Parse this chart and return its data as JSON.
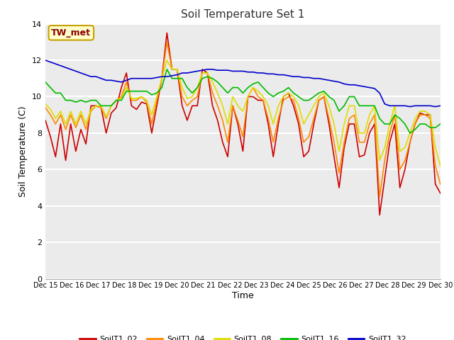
{
  "title": "Soil Temperature Set 1",
  "xlabel": "Time",
  "ylabel": "Soil Temperature (C)",
  "ylim": [
    0,
    14
  ],
  "yticks": [
    0,
    2,
    4,
    6,
    8,
    10,
    12,
    14
  ],
  "fig_bg": "#ffffff",
  "plot_bg": "#ebebeb",
  "grid_color": "#ffffff",
  "annotation_label": "TW_met",
  "annotation_color": "#8b0000",
  "annotation_bg": "#ffffcc",
  "annotation_border": "#c8a000",
  "series_colors": {
    "SoilT1_02": "#cc0000",
    "SoilT1_04": "#ff8800",
    "SoilT1_08": "#dddd00",
    "SoilT1_16": "#00bb00",
    "SoilT1_32": "#0000cc"
  },
  "xtick_labels": [
    "Dec 15",
    "Dec 16",
    "Dec 17",
    "Dec 18",
    "Dec 19",
    "Dec 20",
    "Dec 21",
    "Dec 22",
    "Dec 23",
    "Dec 24",
    "Dec 25",
    "Dec 26",
    "Dec 27",
    "Dec 28",
    "Dec 29",
    "Dec 30"
  ],
  "SoilT1_02": [
    8.7,
    7.8,
    6.7,
    8.5,
    6.5,
    8.5,
    7.0,
    8.2,
    7.4,
    9.5,
    9.5,
    9.4,
    8.0,
    9.1,
    9.4,
    10.5,
    11.3,
    9.5,
    9.3,
    9.7,
    9.6,
    8.0,
    9.5,
    11.0,
    13.5,
    11.5,
    11.5,
    9.5,
    8.7,
    9.5,
    9.5,
    11.5,
    11.3,
    9.5,
    8.7,
    7.5,
    6.7,
    9.5,
    8.5,
    7.0,
    10.0,
    10.0,
    9.8,
    9.8,
    8.5,
    6.7,
    8.5,
    10.0,
    10.2,
    9.5,
    8.5,
    6.7,
    7.0,
    8.5,
    9.8,
    10.0,
    8.5,
    6.7,
    5.0,
    7.2,
    8.5,
    8.5,
    6.7,
    6.8,
    8.0,
    8.5,
    3.5,
    5.5,
    7.5,
    8.5,
    5.0,
    6.0,
    7.5,
    8.5,
    9.1,
    9.0,
    9.0,
    5.2,
    4.7
  ],
  "SoilT1_04": [
    9.4,
    9.0,
    8.5,
    9.0,
    8.2,
    9.0,
    8.3,
    9.0,
    8.2,
    9.2,
    9.5,
    9.4,
    8.8,
    9.5,
    9.8,
    10.0,
    10.8,
    9.8,
    9.8,
    10.0,
    9.7,
    8.5,
    9.8,
    11.0,
    13.0,
    11.5,
    11.5,
    10.0,
    9.5,
    9.8,
    10.0,
    11.3,
    11.3,
    10.2,
    9.5,
    8.7,
    7.5,
    9.5,
    8.7,
    7.8,
    10.0,
    10.5,
    10.0,
    9.8,
    8.8,
    7.5,
    8.8,
    9.8,
    10.0,
    9.8,
    8.8,
    7.5,
    7.8,
    8.8,
    9.8,
    10.0,
    8.8,
    7.5,
    5.8,
    7.5,
    8.8,
    9.0,
    7.5,
    7.5,
    8.5,
    9.0,
    4.5,
    6.5,
    8.0,
    9.0,
    6.0,
    6.5,
    7.5,
    8.5,
    9.0,
    9.0,
    8.8,
    6.2,
    5.2
  ],
  "SoilT1_08": [
    9.6,
    9.3,
    8.8,
    9.2,
    8.5,
    9.2,
    8.5,
    9.2,
    8.5,
    9.3,
    9.5,
    9.5,
    8.9,
    9.5,
    9.8,
    9.9,
    10.5,
    9.9,
    9.9,
    10.0,
    9.8,
    9.0,
    10.0,
    11.0,
    12.0,
    11.5,
    11.5,
    10.5,
    9.9,
    10.0,
    10.5,
    11.3,
    11.3,
    10.8,
    10.2,
    9.5,
    8.5,
    10.0,
    9.5,
    9.2,
    10.0,
    10.5,
    10.3,
    10.0,
    9.5,
    8.5,
    9.5,
    10.0,
    10.2,
    10.0,
    9.5,
    8.5,
    9.0,
    9.5,
    10.0,
    10.2,
    9.5,
    8.5,
    7.0,
    8.5,
    9.5,
    9.5,
    8.0,
    8.0,
    9.0,
    9.5,
    6.5,
    7.2,
    8.5,
    9.5,
    7.0,
    7.2,
    8.0,
    8.8,
    9.2,
    9.2,
    9.0,
    7.2,
    6.2
  ],
  "SoilT1_16": [
    10.8,
    10.5,
    10.2,
    10.2,
    9.8,
    9.8,
    9.7,
    9.8,
    9.7,
    9.8,
    9.8,
    9.5,
    9.5,
    9.5,
    9.8,
    9.8,
    10.3,
    10.3,
    10.3,
    10.3,
    10.3,
    10.1,
    10.2,
    10.5,
    11.5,
    11.0,
    11.0,
    11.0,
    10.5,
    10.2,
    10.5,
    11.0,
    11.1,
    11.0,
    10.8,
    10.5,
    10.2,
    10.5,
    10.5,
    10.2,
    10.5,
    10.7,
    10.8,
    10.5,
    10.2,
    10.0,
    10.2,
    10.3,
    10.5,
    10.2,
    10.0,
    9.8,
    9.8,
    10.0,
    10.2,
    10.3,
    10.0,
    9.8,
    9.2,
    9.5,
    10.0,
    10.0,
    9.5,
    9.5,
    9.5,
    9.5,
    8.8,
    8.5,
    8.5,
    9.0,
    8.8,
    8.5,
    8.0,
    8.2,
    8.5,
    8.5,
    8.3,
    8.3,
    8.5
  ],
  "SoilT1_32": [
    12.0,
    11.9,
    11.8,
    11.7,
    11.6,
    11.5,
    11.4,
    11.3,
    11.2,
    11.1,
    11.1,
    11.0,
    10.9,
    10.9,
    10.85,
    10.8,
    10.9,
    11.0,
    11.0,
    11.0,
    11.0,
    11.0,
    11.05,
    11.1,
    11.1,
    11.15,
    11.2,
    11.3,
    11.3,
    11.35,
    11.4,
    11.45,
    11.5,
    11.5,
    11.45,
    11.45,
    11.45,
    11.4,
    11.4,
    11.4,
    11.35,
    11.35,
    11.3,
    11.3,
    11.25,
    11.25,
    11.2,
    11.2,
    11.15,
    11.1,
    11.1,
    11.05,
    11.05,
    11.0,
    11.0,
    10.95,
    10.9,
    10.85,
    10.8,
    10.7,
    10.65,
    10.65,
    10.6,
    10.55,
    10.5,
    10.45,
    10.2,
    9.6,
    9.5,
    9.5,
    9.5,
    9.5,
    9.45,
    9.5,
    9.5,
    9.5,
    9.5,
    9.45,
    9.5
  ]
}
